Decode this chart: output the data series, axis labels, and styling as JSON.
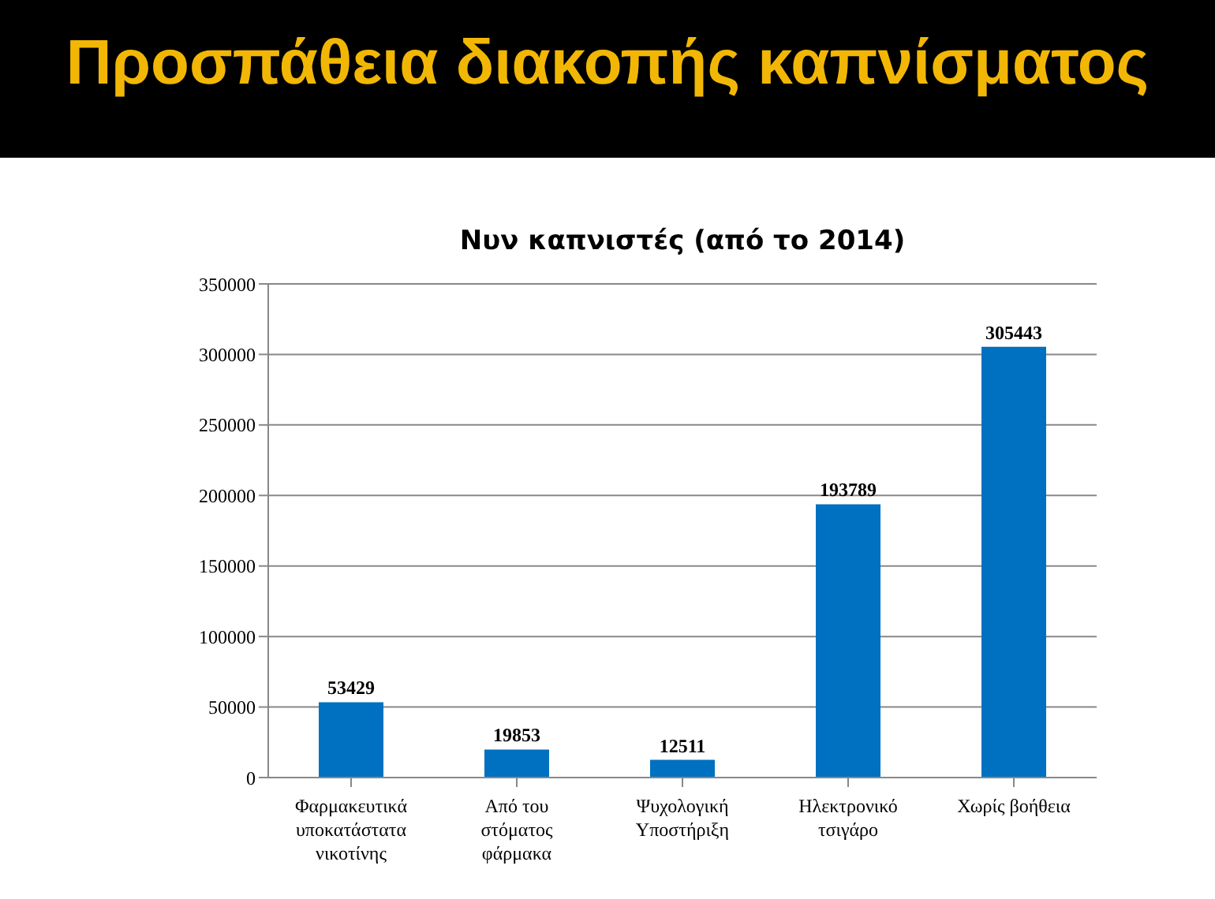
{
  "chart_data": {
    "type": "bar",
    "title": "Προσπάθεια διακοπής καπνίσματος",
    "subtitle": "Νυν καπνιστές (από το 2014)",
    "categories": [
      "Φαρμακευτικά υποκατάστατα νικοτίνης",
      "Από του στόματος φάρμακα",
      "Ψυχολογική Υποστήριξη",
      "Ηλεκτρονικό τσιγάρο",
      "Χωρίς βοήθεια"
    ],
    "values": [
      53429,
      19853,
      12511,
      193789,
      305443
    ],
    "color": "#0070c0",
    "ylim": [
      0,
      350000
    ],
    "yticks": [
      0,
      50000,
      100000,
      150000,
      200000,
      250000,
      300000,
      350000
    ],
    "grid": "y",
    "data_labels": true
  }
}
